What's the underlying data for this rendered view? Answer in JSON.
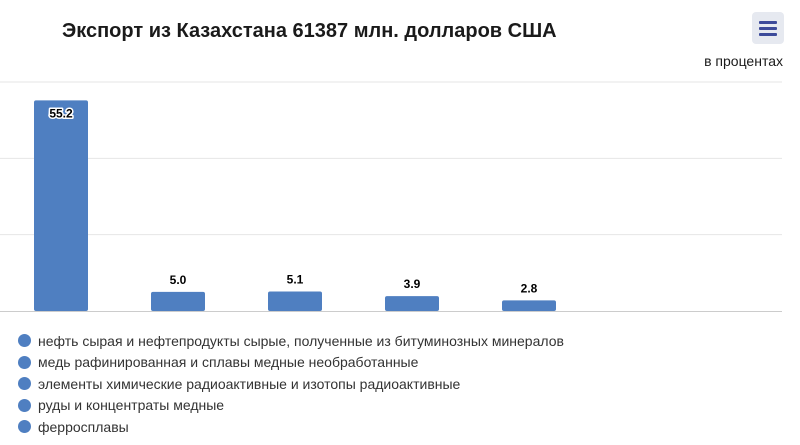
{
  "header": {
    "title": "Экспорт из Казахстана 61387 млн. долларов США",
    "unit": "в процентах",
    "menu_icon": "hamburger-menu-icon"
  },
  "colors": {
    "bar": "#4f7fc1",
    "grid": "#e6e6e6",
    "axis": "#cccccc",
    "label": "#000000",
    "label_outline": "#ffffff",
    "menu_accent": "#3c4a9a"
  },
  "chart_data": {
    "type": "bar",
    "categories": [
      "нефть сырая и нефтепродукты сырые, полученные из битуминозных минералов",
      "медь рафинированная и сплавы медные необработанные",
      "элементы химические радиоактивные и изотопы радиоактивные",
      "руды и концентраты медные",
      "ферросплавы"
    ],
    "values": [
      55.2,
      5.0,
      5.1,
      3.9,
      2.8
    ],
    "value_labels": [
      "55.2",
      "5.0",
      "5.1",
      "3.9",
      "2.8"
    ],
    "ylabel": "в процентах",
    "ylim": [
      0,
      60
    ],
    "y_gridlines": [
      0,
      20,
      40,
      60
    ],
    "y_tick_labels_visible": false,
    "grid": true,
    "legend": "bottom-left"
  }
}
